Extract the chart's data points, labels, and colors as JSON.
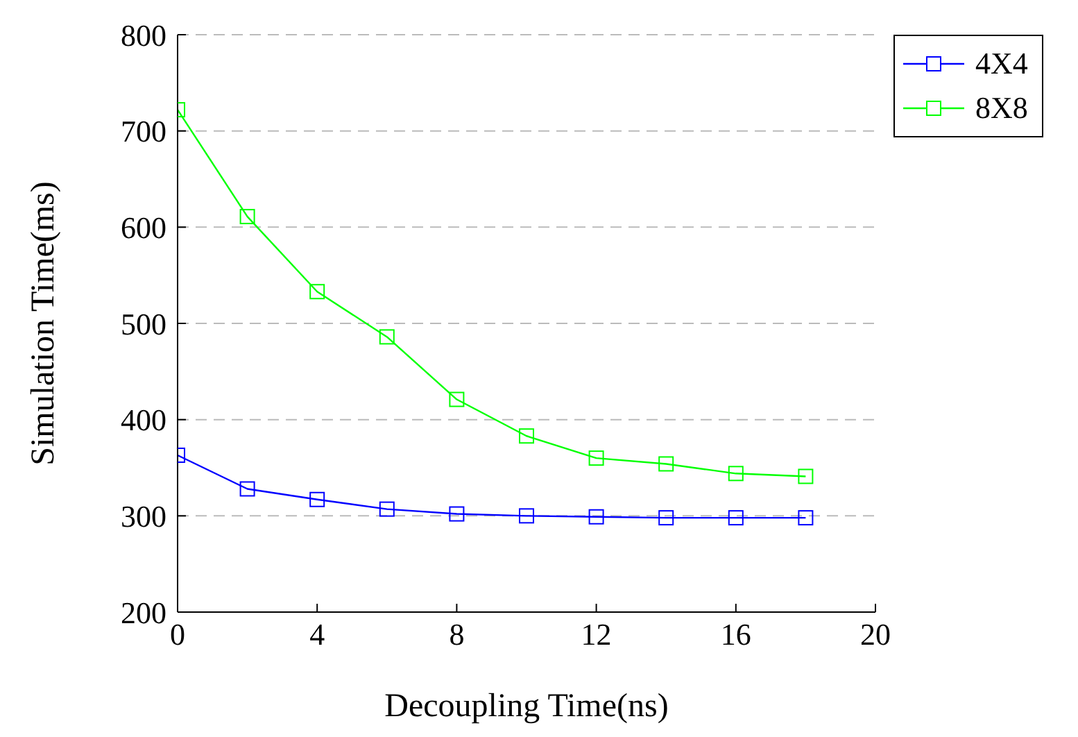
{
  "chart_data": {
    "type": "line",
    "xlabel": "Decoupling Time(ns)",
    "ylabel": "Simulation Time(ms)",
    "x": [
      0,
      2,
      4,
      6,
      8,
      10,
      12,
      14,
      16,
      18
    ],
    "series": [
      {
        "name": "4X4",
        "color": "#0000ff",
        "values": [
          363,
          328,
          317,
          307,
          302,
          300,
          299,
          298,
          298,
          298
        ]
      },
      {
        "name": "8X8",
        "color": "#00ff00",
        "values": [
          722,
          611,
          533,
          486,
          421,
          383,
          360,
          354,
          344,
          341
        ]
      }
    ],
    "xlim": [
      0,
      20
    ],
    "xticks": [
      0,
      4,
      8,
      12,
      16,
      20
    ],
    "ylim": [
      200,
      800
    ],
    "yticks": [
      200,
      300,
      400,
      500,
      600,
      700,
      800
    ],
    "grid": "y",
    "legend": "top right",
    "marker": "square",
    "line_style": "solid"
  }
}
